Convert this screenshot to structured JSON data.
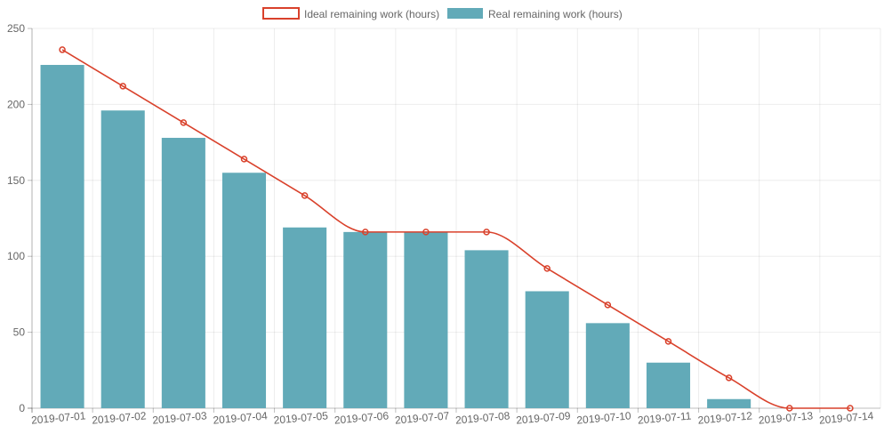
{
  "chart_data": {
    "type": "bar",
    "categories": [
      "2019-07-01",
      "2019-07-02",
      "2019-07-03",
      "2019-07-04",
      "2019-07-05",
      "2019-07-06",
      "2019-07-07",
      "2019-07-08",
      "2019-07-09",
      "2019-07-10",
      "2019-07-11",
      "2019-07-12",
      "2019-07-13",
      "2019-07-14"
    ],
    "series": [
      {
        "name": "Ideal remaining work (hours)",
        "kind": "line",
        "color": "#d9412b",
        "values": [
          236,
          212,
          188,
          164,
          140,
          116,
          116,
          116,
          92,
          68,
          44,
          20,
          0,
          0
        ]
      },
      {
        "name": "Real remaining work (hours)",
        "kind": "bar",
        "color": "#62aab8",
        "values": [
          226,
          196,
          178,
          155,
          119,
          116,
          116,
          104,
          77,
          56,
          30,
          6,
          null,
          null
        ]
      }
    ],
    "ylim": [
      0,
      250
    ],
    "yticks": [
      0,
      50,
      100,
      150,
      200,
      250
    ],
    "grid": true,
    "legend": "top-center"
  }
}
